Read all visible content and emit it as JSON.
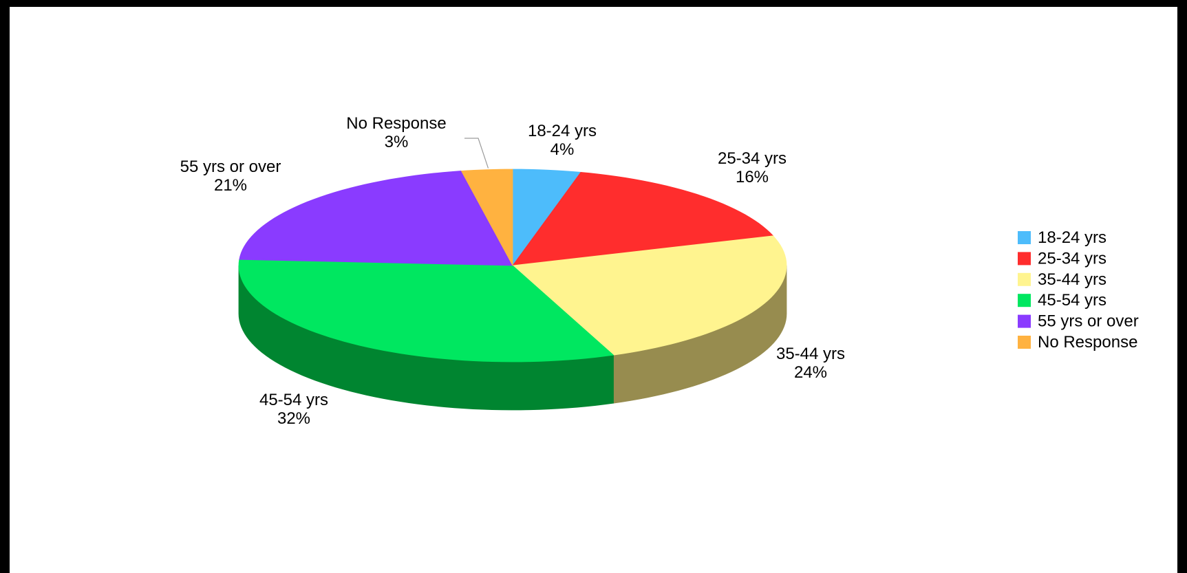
{
  "chart_data": {
    "type": "pie",
    "style": "3d",
    "legend_position": "right",
    "categories": [
      "18-24 yrs",
      "25-34 yrs",
      "35-44 yrs",
      "45-54 yrs",
      "55 yrs or over",
      "No Response"
    ],
    "values": [
      4,
      16,
      24,
      32,
      21,
      3
    ],
    "value_labels": [
      "4%",
      "16%",
      "24%",
      "32%",
      "21%",
      "3%"
    ],
    "colors": [
      "#4dbcfb",
      "#ff2d2d",
      "#fff48f",
      "#00e760",
      "#8a3bff",
      "#ffb240"
    ],
    "side_colors": [
      "#2f7db0",
      "#a81c1c",
      "#978c4f",
      "#008530",
      "#5a22aa",
      "#b77a22"
    ]
  }
}
